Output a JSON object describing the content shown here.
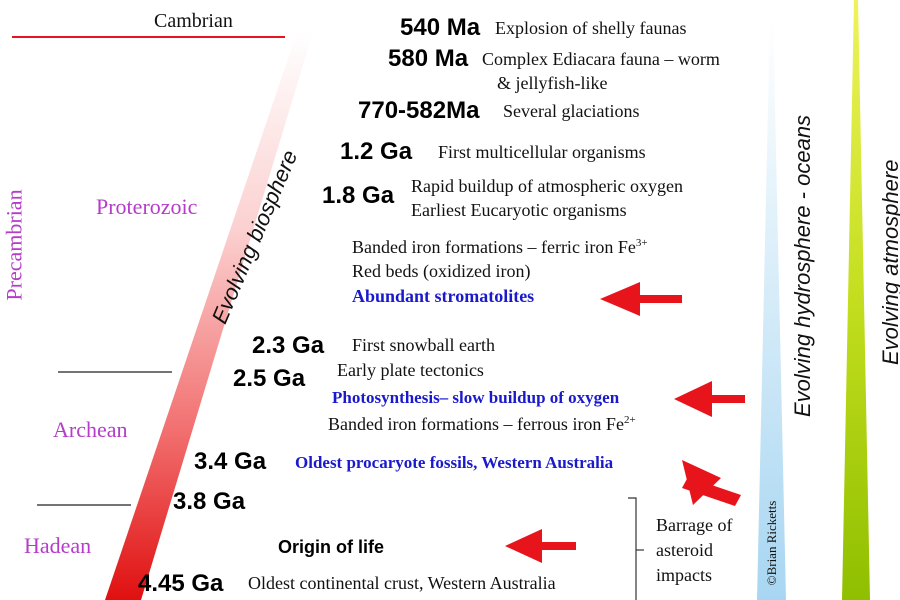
{
  "eras": {
    "cambrian": "Cambrian",
    "precambrian": "Precambrian",
    "proterozoic": "Proterozoic",
    "archean": "Archean",
    "hadean": "Hadean"
  },
  "side_labels": {
    "biosphere": "Evolving biosphere",
    "hydrosphere": "Evolving hydrosphere - oceans",
    "atmosphere": "Evolving atmosphere",
    "copyright": "©Brian Ricketts"
  },
  "events": {
    "e540": {
      "age": "540 Ma",
      "text": "Explosion of shelly faunas"
    },
    "e580": {
      "age": "580 Ma",
      "text1": "Complex Ediacara fauna – worm",
      "text2": "& jellyfish-like"
    },
    "e770": {
      "age": "770-582Ma",
      "text": "Several glaciations"
    },
    "e12": {
      "age": "1.2 Ga",
      "text": "First multicellular organisms"
    },
    "e18": {
      "age": "1.8 Ga",
      "text1": "Rapid buildup of atmospheric oxygen",
      "text2": "Earliest Eucaryotic organisms"
    },
    "bif_ferric": {
      "text": "Banded iron formations –  ferric iron Fe",
      "sup": "3+"
    },
    "red_beds": {
      "text": "Red beds (oxidized iron)"
    },
    "stromatolites": {
      "text": "Abundant stromatolites"
    },
    "e23": {
      "age": "2.3 Ga",
      "text": "First snowball earth"
    },
    "e25": {
      "age": "2.5 Ga",
      "text": "Early plate tectonics"
    },
    "photosynthesis": {
      "text": "Photosynthesis– slow buildup of oxygen"
    },
    "bif_ferrous": {
      "text": "Banded iron formations –  ferrous iron Fe",
      "sup": "2+"
    },
    "e34": {
      "age": "3.4 Ga",
      "text": "Oldest procaryote fossils, Western Australia"
    },
    "e38": {
      "age": "3.8 Ga"
    },
    "origin": {
      "text": "Origin of life"
    },
    "e445": {
      "age": "4.45 Ga",
      "text": "Oldest continental crust, Western Australia"
    },
    "barrage": {
      "line1": "Barrage of",
      "line2": "asteroid",
      "line3": "impacts"
    }
  },
  "colors": {
    "era_purple": "#b43cc8",
    "highlight_blue": "#1a1acc",
    "arrow_red": "#e8141c",
    "cambrian_line": "#e8141c"
  }
}
